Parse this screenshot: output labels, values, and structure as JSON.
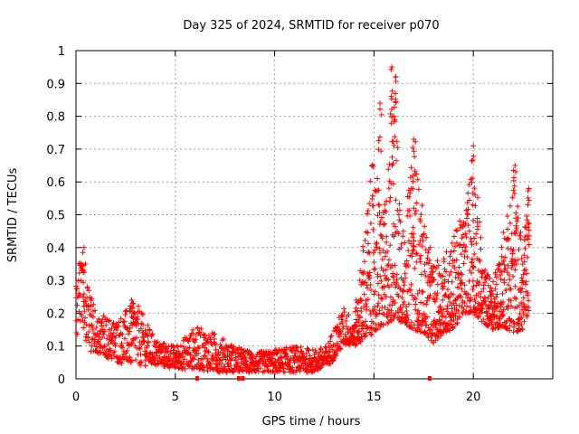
{
  "chart_data": {
    "type": "scatter",
    "title": "Day 325 of 2024, SRMTID for receiver p070",
    "xlabel": "GPS time / hours",
    "ylabel": "SRMTID / TECUs",
    "xlim": [
      0,
      24
    ],
    "ylim": [
      0,
      1
    ],
    "x_ticks": [
      0,
      5,
      10,
      15,
      20
    ],
    "x_tick_labels": [
      "0",
      "5",
      "10",
      "15",
      "20"
    ],
    "y_ticks": [
      0,
      0.1,
      0.2,
      0.3,
      0.4,
      0.5,
      0.6,
      0.7,
      0.8,
      0.9,
      1
    ],
    "y_tick_labels": [
      "0",
      "0.1",
      "0.2",
      "0.3",
      "0.4",
      "0.5",
      "0.6",
      "0.7",
      "0.8",
      "0.9",
      "1"
    ],
    "grid": true,
    "marker": "plus",
    "series": [
      {
        "name": "p070",
        "color": "#ff0000",
        "envelope": [
          {
            "x": 0.0,
            "lo": 0.12,
            "hi": 0.31
          },
          {
            "x": 0.3,
            "lo": 0.18,
            "hi": 0.4
          },
          {
            "x": 0.6,
            "lo": 0.08,
            "hi": 0.3
          },
          {
            "x": 1.0,
            "lo": 0.08,
            "hi": 0.2
          },
          {
            "x": 2.0,
            "lo": 0.05,
            "hi": 0.18
          },
          {
            "x": 3.0,
            "lo": 0.04,
            "hi": 0.24
          },
          {
            "x": 4.0,
            "lo": 0.04,
            "hi": 0.12
          },
          {
            "x": 5.0,
            "lo": 0.03,
            "hi": 0.1
          },
          {
            "x": 6.0,
            "lo": 0.03,
            "hi": 0.16
          },
          {
            "x": 7.0,
            "lo": 0.02,
            "hi": 0.14
          },
          {
            "x": 8.0,
            "lo": 0.02,
            "hi": 0.1
          },
          {
            "x": 9.0,
            "lo": 0.02,
            "hi": 0.08
          },
          {
            "x": 10.0,
            "lo": 0.02,
            "hi": 0.09
          },
          {
            "x": 11.0,
            "lo": 0.02,
            "hi": 0.1
          },
          {
            "x": 12.0,
            "lo": 0.02,
            "hi": 0.09
          },
          {
            "x": 12.6,
            "lo": 0.03,
            "hi": 0.1
          },
          {
            "x": 13.0,
            "lo": 0.06,
            "hi": 0.16
          },
          {
            "x": 13.5,
            "lo": 0.1,
            "hi": 0.22
          },
          {
            "x": 14.0,
            "lo": 0.1,
            "hi": 0.18
          },
          {
            "x": 14.5,
            "lo": 0.12,
            "hi": 0.45
          },
          {
            "x": 15.0,
            "lo": 0.14,
            "hi": 0.7
          },
          {
            "x": 15.5,
            "lo": 0.16,
            "hi": 0.5
          },
          {
            "x": 16.0,
            "lo": 0.18,
            "hi": 0.95
          },
          {
            "x": 16.5,
            "lo": 0.17,
            "hi": 0.45
          },
          {
            "x": 17.0,
            "lo": 0.15,
            "hi": 0.72
          },
          {
            "x": 17.5,
            "lo": 0.14,
            "hi": 0.5
          },
          {
            "x": 18.0,
            "lo": 0.11,
            "hi": 0.35
          },
          {
            "x": 18.5,
            "lo": 0.14,
            "hi": 0.38
          },
          {
            "x": 19.0,
            "lo": 0.15,
            "hi": 0.45
          },
          {
            "x": 19.5,
            "lo": 0.2,
            "hi": 0.5
          },
          {
            "x": 20.0,
            "lo": 0.2,
            "hi": 0.71
          },
          {
            "x": 20.5,
            "lo": 0.17,
            "hi": 0.35
          },
          {
            "x": 21.0,
            "lo": 0.15,
            "hi": 0.3
          },
          {
            "x": 21.5,
            "lo": 0.16,
            "hi": 0.45
          },
          {
            "x": 22.0,
            "lo": 0.14,
            "hi": 0.65
          },
          {
            "x": 22.5,
            "lo": 0.15,
            "hi": 0.4
          },
          {
            "x": 22.8,
            "lo": 0.2,
            "hi": 0.58
          }
        ],
        "peaks": [
          {
            "x": 0.4,
            "y": 0.4
          },
          {
            "x": 2.8,
            "y": 0.24
          },
          {
            "x": 15.3,
            "y": 0.84
          },
          {
            "x": 15.9,
            "y": 0.95
          },
          {
            "x": 16.1,
            "y": 0.92
          },
          {
            "x": 16.0,
            "y": 0.8
          },
          {
            "x": 17.0,
            "y": 0.73
          },
          {
            "x": 20.0,
            "y": 0.71
          },
          {
            "x": 22.1,
            "y": 0.65
          },
          {
            "x": 22.8,
            "y": 0.58
          }
        ],
        "outliers": [
          {
            "x": 6.1,
            "y": 0.0
          },
          {
            "x": 8.2,
            "y": 0.0
          },
          {
            "x": 8.4,
            "y": 0.0
          },
          {
            "x": 17.8,
            "y": 0.0
          }
        ]
      }
    ]
  }
}
